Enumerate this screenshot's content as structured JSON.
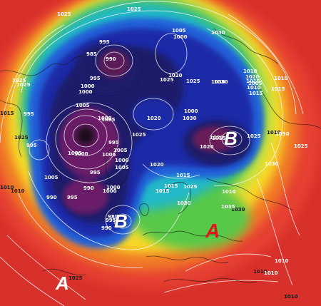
{
  "map": {
    "pressure_labels": {
      "top": [
        {
          "text": "1025"
        },
        {
          "text": "1025"
        },
        {
          "text": "1025"
        }
      ],
      "dark": [
        {
          "text": "1015"
        },
        {
          "text": "1025"
        },
        {
          "text": "1010"
        },
        {
          "text": "1010"
        },
        {
          "text": "1010"
        },
        {
          "text": "1010"
        },
        {
          "text": "1010"
        },
        {
          "text": "1025"
        },
        {
          "text": "1030"
        }
      ],
      "light": [
        {
          "text": "1005"
        },
        {
          "text": "1000"
        },
        {
          "text": "1030"
        },
        {
          "text": "995"
        },
        {
          "text": "985"
        },
        {
          "text": "990"
        },
        {
          "text": "995"
        },
        {
          "text": "1000"
        },
        {
          "text": "1000"
        },
        {
          "text": "1005"
        },
        {
          "text": "1025"
        },
        {
          "text": "1020"
        },
        {
          "text": "1025"
        },
        {
          "text": "1030"
        },
        {
          "text": "1010"
        },
        {
          "text": "1020"
        },
        {
          "text": "1015"
        },
        {
          "text": "1010"
        },
        {
          "text": "1015"
        },
        {
          "text": "1005"
        },
        {
          "text": "995"
        },
        {
          "text": "1000"
        },
        {
          "text": "1005"
        },
        {
          "text": "1020"
        },
        {
          "text": "1030"
        },
        {
          "text": "1000"
        },
        {
          "text": "1020"
        },
        {
          "text": "1025"
        },
        {
          "text": "1020"
        },
        {
          "text": "1015"
        },
        {
          "text": "1025"
        },
        {
          "text": "995"
        },
        {
          "text": "1005"
        },
        {
          "text": "1000"
        },
        {
          "text": "1005"
        },
        {
          "text": "995"
        },
        {
          "text": "1005"
        },
        {
          "text": "1000"
        },
        {
          "text": "1005"
        },
        {
          "text": "1020"
        },
        {
          "text": "1015"
        },
        {
          "text": "1030"
        },
        {
          "text": "1000"
        },
        {
          "text": "995"
        },
        {
          "text": "1005"
        },
        {
          "text": "990"
        },
        {
          "text": "1000"
        },
        {
          "text": "990"
        },
        {
          "text": "995"
        },
        {
          "text": "1015"
        },
        {
          "text": "1025"
        },
        {
          "text": "1015"
        },
        {
          "text": "1035"
        },
        {
          "text": "1010"
        },
        {
          "text": "1030"
        },
        {
          "text": "985"
        },
        {
          "text": "990"
        },
        {
          "text": "995"
        },
        {
          "text": "1030"
        },
        {
          "text": "1015"
        },
        {
          "text": "1010"
        },
        {
          "text": "1025"
        },
        {
          "text": "1030"
        },
        {
          "text": "1025"
        },
        {
          "text": "1010"
        },
        {
          "text": "1010"
        }
      ]
    },
    "centers": {
      "low_east": "B",
      "low_atlantic": "B",
      "high_europe": "A",
      "high_southwest": "A"
    },
    "colors": {
      "outer_red": "#d8302a",
      "red": "#e64030",
      "orange": "#f07828",
      "yellow": "#f8d828",
      "yellow_green": "#c8e040",
      "green": "#40c060",
      "cyan": "#20b8c8",
      "blue": "#2060d8",
      "deep_blue": "#1a2aa8",
      "navy": "#1a1a6a",
      "purple": "#6a1a68",
      "core": "#1a0a1a"
    }
  }
}
